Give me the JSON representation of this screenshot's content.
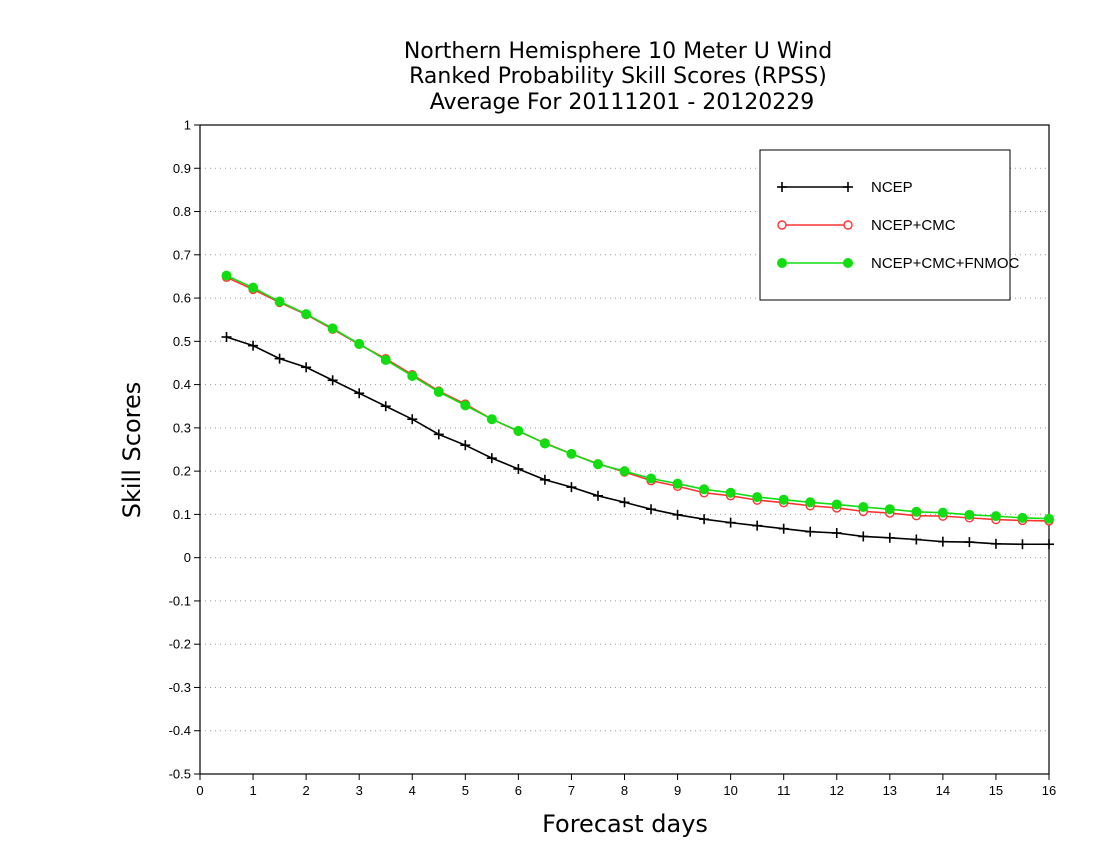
{
  "chart_data": {
    "type": "line",
    "title": [
      "Northern Hemisphere 10 Meter U Wind",
      "Ranked Probability Skill Scores (RPSS)",
      "Average For 20111201 - 20120229"
    ],
    "xlabel": "Forecast days",
    "ylabel": "Skill Scores",
    "xlim": [
      0,
      16
    ],
    "ylim": [
      -0.5,
      1
    ],
    "x_ticks": [
      0,
      1,
      2,
      3,
      4,
      5,
      6,
      7,
      8,
      9,
      10,
      11,
      12,
      13,
      14,
      15,
      16
    ],
    "y_ticks": [
      -0.5,
      -0.4,
      -0.3,
      -0.2,
      -0.1,
      0,
      0.1,
      0.2,
      0.3,
      0.4,
      0.5,
      0.6,
      0.7,
      0.8,
      0.9,
      1
    ],
    "y_tick_labels": [
      "-0.5",
      "-0.4",
      "-0.3",
      "-0.2",
      "-0.1",
      "0",
      "0.1",
      "0.2",
      "0.3",
      "0.4",
      "0.5",
      "0.6",
      "0.7",
      "0.8",
      "0.9",
      "1"
    ],
    "grid": "horizontal-dotted",
    "legend_position": "top-right",
    "x": [
      0.5,
      1,
      1.5,
      2,
      2.5,
      3,
      3.5,
      4,
      4.5,
      5,
      5.5,
      6,
      6.5,
      7,
      7.5,
      8,
      8.5,
      9,
      9.5,
      10,
      10.5,
      11,
      11.5,
      12,
      12.5,
      13,
      13.5,
      14,
      14.5,
      15,
      15.5,
      16
    ],
    "series": [
      {
        "name": "NCEP",
        "color": "#000000",
        "marker": "plus",
        "values": [
          0.51,
          0.49,
          0.46,
          0.44,
          0.41,
          0.38,
          0.35,
          0.32,
          0.285,
          0.26,
          0.23,
          0.205,
          0.18,
          0.163,
          0.143,
          0.128,
          0.112,
          0.099,
          0.089,
          0.081,
          0.074,
          0.067,
          0.06,
          0.057,
          0.049,
          0.046,
          0.042,
          0.037,
          0.036,
          0.032,
          0.031,
          0.031
        ]
      },
      {
        "name": "NCEP+CMC",
        "color": "#ff3333",
        "marker": "open-circle",
        "values": [
          0.648,
          0.62,
          0.59,
          0.562,
          0.528,
          0.493,
          0.46,
          0.423,
          0.385,
          0.355,
          0.32,
          0.292,
          0.265,
          0.24,
          0.217,
          0.198,
          0.178,
          0.165,
          0.15,
          0.143,
          0.133,
          0.127,
          0.12,
          0.115,
          0.107,
          0.103,
          0.097,
          0.096,
          0.092,
          0.088,
          0.086,
          0.085
        ]
      },
      {
        "name": "NCEP+CMC+FNMOC",
        "color": "#11dd11",
        "marker": "filled-circle",
        "values": [
          0.652,
          0.624,
          0.592,
          0.563,
          0.53,
          0.494,
          0.457,
          0.42,
          0.383,
          0.352,
          0.32,
          0.293,
          0.264,
          0.24,
          0.216,
          0.2,
          0.183,
          0.171,
          0.158,
          0.15,
          0.14,
          0.134,
          0.128,
          0.123,
          0.117,
          0.112,
          0.106,
          0.104,
          0.099,
          0.096,
          0.092,
          0.09
        ]
      }
    ]
  }
}
